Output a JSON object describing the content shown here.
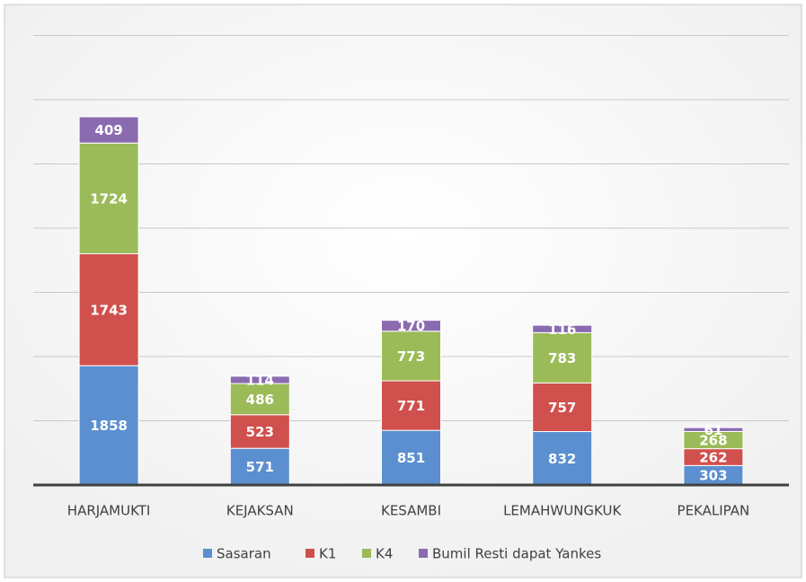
{
  "chart_data": {
    "type": "stacked-bar",
    "categories": [
      "HARJAMUKTI",
      "KEJAKSAN",
      "KESAMBI",
      "LEMAHWUNGKUK",
      "PEKALIPAN"
    ],
    "series": [
      {
        "name": "Sasaran",
        "color": "#5b8fd0",
        "values": [
          1858,
          571,
          851,
          832,
          303
        ]
      },
      {
        "name": "K1",
        "color": "#d0504d",
        "values": [
          1743,
          523,
          771,
          757,
          262
        ]
      },
      {
        "name": "K4",
        "color": "#9bbb59",
        "values": [
          1724,
          486,
          773,
          783,
          268
        ]
      },
      {
        "name": "Bumil Resti dapat Yankes",
        "color": "#8a6bb0",
        "values": [
          409,
          114,
          170,
          116,
          61
        ]
      }
    ],
    "ylim": [
      0,
      7000
    ],
    "yticks": [
      0,
      1000,
      2000,
      3000,
      4000,
      5000,
      6000,
      7000
    ],
    "grid": true,
    "legend": "bottom"
  }
}
